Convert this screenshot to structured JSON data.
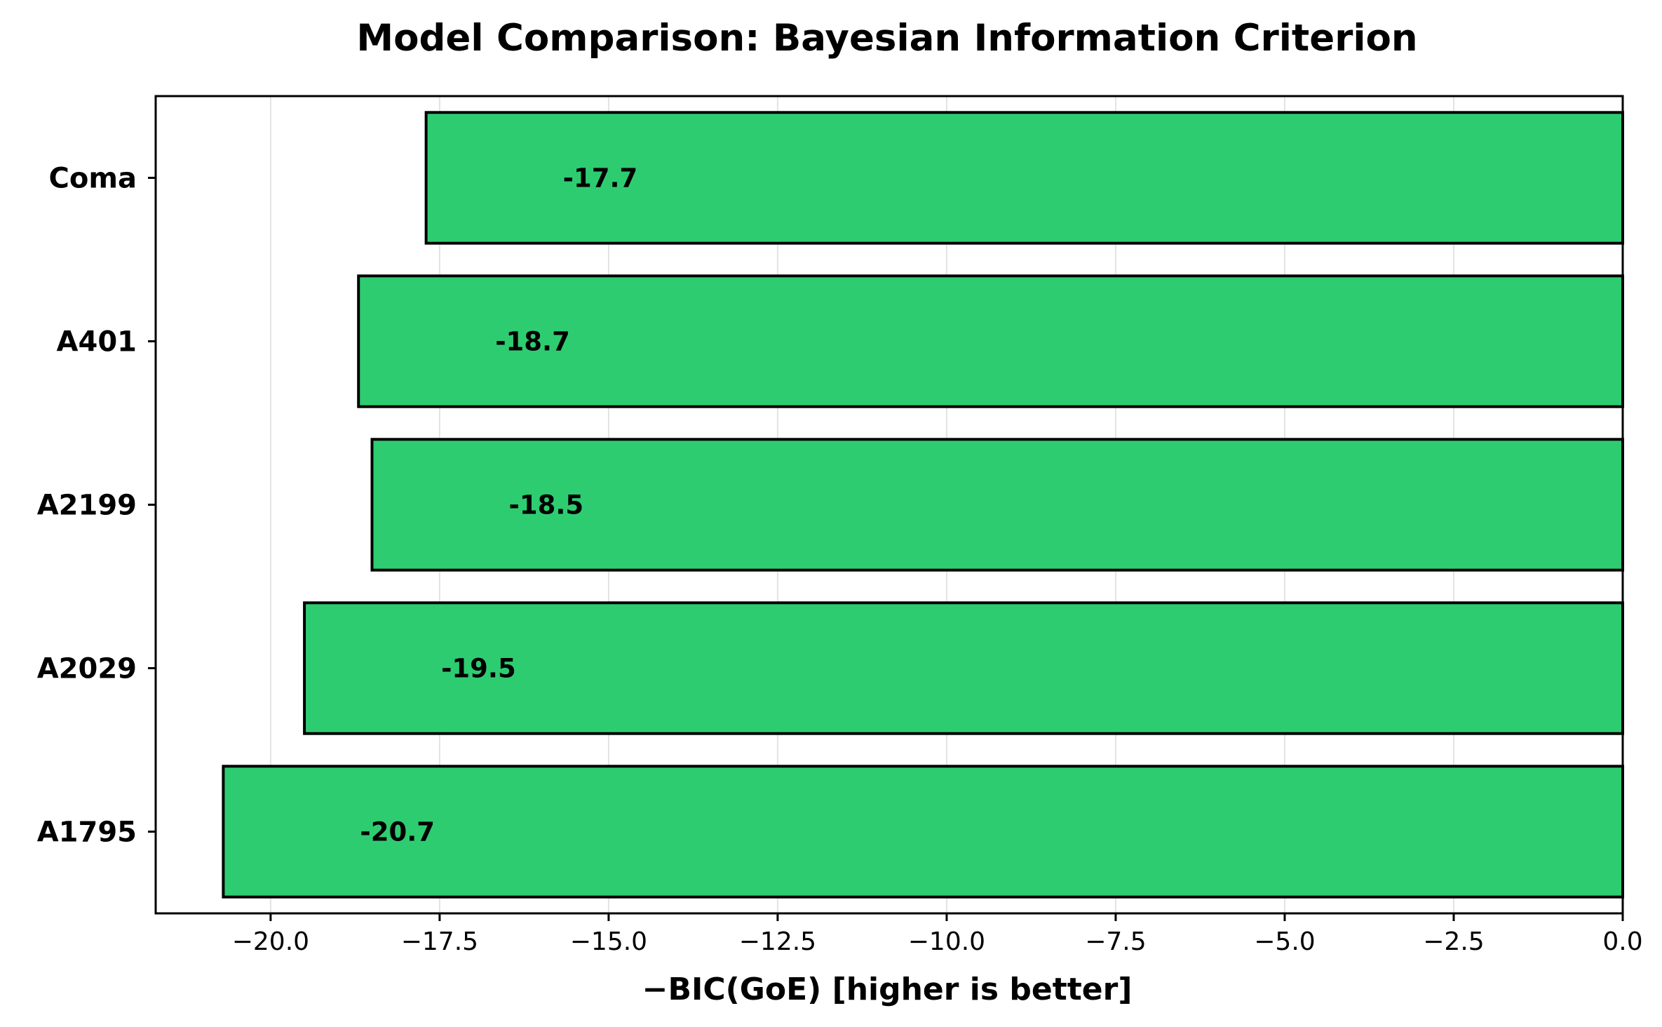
{
  "chart_data": {
    "type": "bar",
    "orientation": "horizontal",
    "title": "Model Comparison: Bayesian Information Criterion",
    "xlabel": "−BIC(GoE) [higher is better]",
    "ylabel": "",
    "categories": [
      "Coma",
      "A401",
      "A2199",
      "A2029",
      "A1795"
    ],
    "values": [
      -17.7,
      -18.7,
      -18.5,
      -19.5,
      -20.7
    ],
    "data_labels": [
      "-17.7",
      "-18.7",
      "-18.5",
      "-19.5",
      "-20.7"
    ],
    "xlim": [
      -21.7,
      0.0
    ],
    "xticks": [
      -20.0,
      -17.5,
      -15.0,
      -12.5,
      -10.0,
      -7.5,
      -5.0,
      -2.5,
      0.0
    ],
    "xtick_labels": [
      "−20.0",
      "−17.5",
      "−15.0",
      "−12.5",
      "−10.0",
      "−7.5",
      "−5.0",
      "−2.5",
      "0.0"
    ],
    "bar_color": "#2ecc71",
    "edge_color": "#000000",
    "grid": "vertical",
    "reference_line": 0.0
  }
}
